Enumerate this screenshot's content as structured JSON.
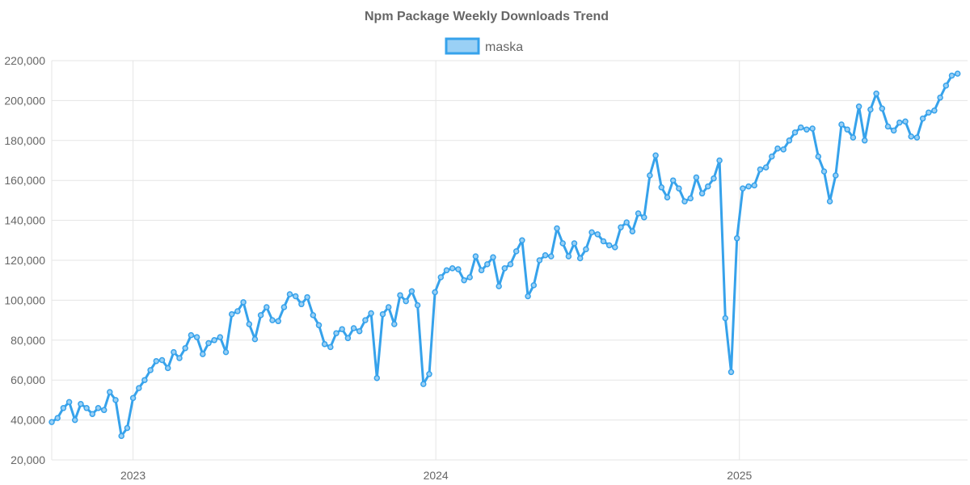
{
  "chart_data": {
    "type": "line",
    "title": "Npm Package Weekly Downloads Trend",
    "xlabel": "",
    "ylabel": "",
    "ylim": [
      20000,
      220000
    ],
    "yticks": [
      "220,000",
      "200,000",
      "180,000",
      "160,000",
      "140,000",
      "120,000",
      "100,000",
      "80,000",
      "60,000",
      "40,000",
      "20,000"
    ],
    "xticks": [
      {
        "label": "2023",
        "date": "2023-01-01"
      },
      {
        "label": "2024",
        "date": "2024-01-01"
      },
      {
        "label": "2025",
        "date": "2025-01-01"
      }
    ],
    "grid": true,
    "legend": "top",
    "x_start": "2022-09-25",
    "x_end": "2025-10-03",
    "series": [
      {
        "name": "maska",
        "color": "#36a2eb",
        "fill": "#9ad0f5",
        "values": [
          [
            "2022-09-25",
            39000
          ],
          [
            "2022-10-02",
            41000
          ],
          [
            "2022-10-09",
            46000
          ],
          [
            "2022-10-16",
            49000
          ],
          [
            "2022-10-23",
            40000
          ],
          [
            "2022-10-30",
            48000
          ],
          [
            "2022-11-06",
            46000
          ],
          [
            "2022-11-13",
            43000
          ],
          [
            "2022-11-20",
            46000
          ],
          [
            "2022-11-27",
            45000
          ],
          [
            "2022-12-04",
            54000
          ],
          [
            "2022-12-11",
            50000
          ],
          [
            "2022-12-18",
            32000
          ],
          [
            "2022-12-25",
            36000
          ],
          [
            "2023-01-01",
            51000
          ],
          [
            "2023-01-08",
            56000
          ],
          [
            "2023-01-15",
            60000
          ],
          [
            "2023-01-22",
            65000
          ],
          [
            "2023-01-29",
            69500
          ],
          [
            "2023-02-05",
            70000
          ],
          [
            "2023-02-12",
            66000
          ],
          [
            "2023-02-19",
            74000
          ],
          [
            "2023-02-26",
            71000
          ],
          [
            "2023-03-05",
            76000
          ],
          [
            "2023-03-12",
            82500
          ],
          [
            "2023-03-19",
            81500
          ],
          [
            "2023-03-26",
            73000
          ],
          [
            "2023-04-02",
            78500
          ],
          [
            "2023-04-09",
            80000
          ],
          [
            "2023-04-16",
            81500
          ],
          [
            "2023-04-23",
            74000
          ],
          [
            "2023-04-30",
            93000
          ],
          [
            "2023-05-07",
            94500
          ],
          [
            "2023-05-14",
            99000
          ],
          [
            "2023-05-21",
            88000
          ],
          [
            "2023-05-28",
            80500
          ],
          [
            "2023-06-04",
            92500
          ],
          [
            "2023-06-11",
            96500
          ],
          [
            "2023-06-18",
            90000
          ],
          [
            "2023-06-25",
            89500
          ],
          [
            "2023-07-02",
            96500
          ],
          [
            "2023-07-09",
            103000
          ],
          [
            "2023-07-16",
            102000
          ],
          [
            "2023-07-23",
            98000
          ],
          [
            "2023-07-30",
            101500
          ],
          [
            "2023-08-06",
            92500
          ],
          [
            "2023-08-13",
            87500
          ],
          [
            "2023-08-20",
            78000
          ],
          [
            "2023-08-27",
            76500
          ],
          [
            "2023-09-03",
            83500
          ],
          [
            "2023-09-10",
            85500
          ],
          [
            "2023-09-17",
            81000
          ],
          [
            "2023-09-24",
            86000
          ],
          [
            "2023-10-01",
            84500
          ],
          [
            "2023-10-08",
            90000
          ],
          [
            "2023-10-15",
            93500
          ],
          [
            "2023-10-22",
            61000
          ],
          [
            "2023-10-29",
            93000
          ],
          [
            "2023-11-05",
            96500
          ],
          [
            "2023-11-12",
            88000
          ],
          [
            "2023-11-19",
            102500
          ],
          [
            "2023-11-26",
            99500
          ],
          [
            "2023-12-03",
            104500
          ],
          [
            "2023-12-10",
            97500
          ],
          [
            "2023-12-17",
            58000
          ],
          [
            "2023-12-24",
            63000
          ],
          [
            "2023-12-31",
            104000
          ],
          [
            "2024-01-07",
            111500
          ],
          [
            "2024-01-14",
            115000
          ],
          [
            "2024-01-21",
            116000
          ],
          [
            "2024-01-28",
            115500
          ],
          [
            "2024-02-04",
            110000
          ],
          [
            "2024-02-11",
            111500
          ],
          [
            "2024-02-18",
            122000
          ],
          [
            "2024-02-25",
            115000
          ],
          [
            "2024-03-03",
            118000
          ],
          [
            "2024-03-10",
            121500
          ],
          [
            "2024-03-17",
            107000
          ],
          [
            "2024-03-24",
            116000
          ],
          [
            "2024-03-31",
            118000
          ],
          [
            "2024-04-07",
            124500
          ],
          [
            "2024-04-14",
            130000
          ],
          [
            "2024-04-21",
            102000
          ],
          [
            "2024-04-28",
            107500
          ],
          [
            "2024-05-05",
            120000
          ],
          [
            "2024-05-12",
            122500
          ],
          [
            "2024-05-19",
            122000
          ],
          [
            "2024-05-26",
            136000
          ],
          [
            "2024-06-02",
            128500
          ],
          [
            "2024-06-09",
            122000
          ],
          [
            "2024-06-16",
            128500
          ],
          [
            "2024-06-23",
            121000
          ],
          [
            "2024-06-30",
            125500
          ],
          [
            "2024-07-07",
            134000
          ],
          [
            "2024-07-14",
            133000
          ],
          [
            "2024-07-21",
            129500
          ],
          [
            "2024-07-28",
            127500
          ],
          [
            "2024-08-04",
            126500
          ],
          [
            "2024-08-11",
            136500
          ],
          [
            "2024-08-18",
            139000
          ],
          [
            "2024-08-25",
            134500
          ],
          [
            "2024-09-01",
            143500
          ],
          [
            "2024-09-08",
            141500
          ],
          [
            "2024-09-15",
            162500
          ],
          [
            "2024-09-22",
            172500
          ],
          [
            "2024-09-29",
            156500
          ],
          [
            "2024-10-06",
            151500
          ],
          [
            "2024-10-13",
            160000
          ],
          [
            "2024-10-20",
            156000
          ],
          [
            "2024-10-27",
            149500
          ],
          [
            "2024-11-03",
            151000
          ],
          [
            "2024-11-10",
            161500
          ],
          [
            "2024-11-17",
            153500
          ],
          [
            "2024-11-24",
            157000
          ],
          [
            "2024-12-01",
            161000
          ],
          [
            "2024-12-08",
            170000
          ],
          [
            "2024-12-15",
            91000
          ],
          [
            "2024-12-22",
            64000
          ],
          [
            "2024-12-29",
            131000
          ],
          [
            "2025-01-05",
            156000
          ],
          [
            "2025-01-12",
            157000
          ],
          [
            "2025-01-19",
            157500
          ],
          [
            "2025-01-26",
            165500
          ],
          [
            "2025-02-02",
            166500
          ],
          [
            "2025-02-09",
            172000
          ],
          [
            "2025-02-16",
            176000
          ],
          [
            "2025-02-23",
            175500
          ],
          [
            "2025-03-02",
            180000
          ],
          [
            "2025-03-09",
            184000
          ],
          [
            "2025-03-16",
            186500
          ],
          [
            "2025-03-23",
            185500
          ],
          [
            "2025-03-30",
            186000
          ],
          [
            "2025-04-06",
            172000
          ],
          [
            "2025-04-13",
            164500
          ],
          [
            "2025-04-20",
            149500
          ],
          [
            "2025-04-27",
            162500
          ],
          [
            "2025-05-04",
            188000
          ],
          [
            "2025-05-11",
            185500
          ],
          [
            "2025-05-18",
            181500
          ],
          [
            "2025-05-25",
            197000
          ],
          [
            "2025-06-01",
            180000
          ],
          [
            "2025-06-08",
            195500
          ],
          [
            "2025-06-15",
            203500
          ],
          [
            "2025-06-22",
            196000
          ],
          [
            "2025-06-29",
            187000
          ],
          [
            "2025-07-06",
            185000
          ],
          [
            "2025-07-13",
            189000
          ],
          [
            "2025-07-20",
            189500
          ],
          [
            "2025-07-27",
            182000
          ],
          [
            "2025-08-03",
            181500
          ],
          [
            "2025-08-10",
            191000
          ],
          [
            "2025-08-17",
            194000
          ],
          [
            "2025-08-24",
            195000
          ],
          [
            "2025-08-31",
            201500
          ],
          [
            "2025-09-07",
            207500
          ],
          [
            "2025-09-14",
            212500
          ],
          [
            "2025-09-21",
            213500
          ]
        ]
      }
    ]
  }
}
